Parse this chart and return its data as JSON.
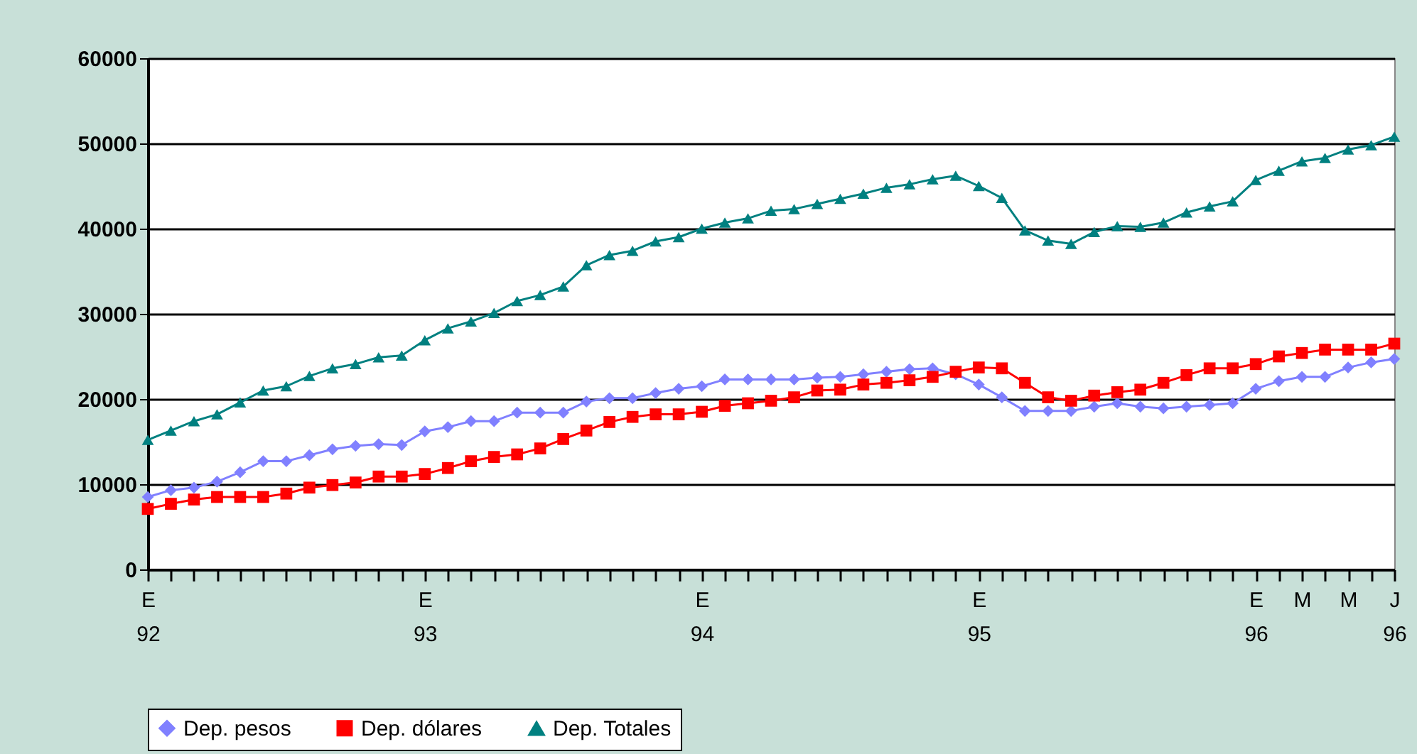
{
  "chart_data": {
    "type": "line",
    "categories": [
      "E\n92",
      null,
      null,
      null,
      null,
      null,
      null,
      null,
      null,
      null,
      null,
      null,
      "E\n93",
      null,
      null,
      null,
      null,
      null,
      null,
      null,
      null,
      null,
      null,
      null,
      "E\n94",
      null,
      null,
      null,
      null,
      null,
      null,
      null,
      null,
      null,
      null,
      null,
      "E\n95",
      null,
      null,
      null,
      null,
      null,
      null,
      null,
      null,
      null,
      null,
      null,
      "E\n96",
      null,
      "M",
      null,
      "M",
      null,
      "J\n96"
    ],
    "series": [
      {
        "name": "Dep. pesos",
        "color": "#8080ff",
        "marker": "diamond",
        "values": [
          8500,
          9300,
          9600,
          10300,
          11400,
          12700,
          12700,
          13400,
          14100,
          14500,
          14700,
          14600,
          16200,
          16700,
          17400,
          17400,
          18400,
          18400,
          18400,
          19700,
          20100,
          20100,
          20700,
          21200,
          21500,
          22300,
          22300,
          22300,
          22300,
          22500,
          22600,
          22900,
          23200,
          23500,
          23600,
          22900,
          21700,
          20200,
          18600,
          18600,
          18600,
          19100,
          19500,
          19100,
          18900,
          19100,
          19300,
          19500,
          21200,
          22100,
          22600,
          22600,
          23700,
          24300,
          24700
        ]
      },
      {
        "name": "Dep. dólares",
        "color": "#ff0000",
        "marker": "square",
        "values": [
          7100,
          7700,
          8200,
          8500,
          8500,
          8500,
          8900,
          9600,
          9900,
          10200,
          10900,
          10900,
          11200,
          11900,
          12700,
          13200,
          13500,
          14200,
          15300,
          16300,
          17300,
          17900,
          18200,
          18200,
          18500,
          19200,
          19500,
          19800,
          20200,
          21000,
          21100,
          21700,
          21900,
          22200,
          22600,
          23200,
          23700,
          23600,
          21900,
          20200,
          19800,
          20400,
          20800,
          21100,
          21900,
          22800,
          23600,
          23600,
          24100,
          25000,
          25400,
          25800,
          25800,
          25800,
          26500
        ]
      },
      {
        "name": "Dep. Totales",
        "color": "#008080",
        "marker": "triangle",
        "values": [
          15200,
          16300,
          17400,
          18200,
          19600,
          21000,
          21500,
          22700,
          23600,
          24100,
          24900,
          25100,
          26900,
          28300,
          29100,
          30100,
          31500,
          32200,
          33200,
          35700,
          36900,
          37400,
          38500,
          39000,
          40000,
          40700,
          41200,
          42100,
          42300,
          42900,
          43500,
          44100,
          44800,
          45200,
          45800,
          46200,
          45000,
          43600,
          39800,
          38600,
          38200,
          39600,
          40300,
          40200,
          40700,
          41900,
          42600,
          43200,
          45700,
          46800,
          47900,
          48300,
          49300,
          49800,
          50800
        ]
      }
    ],
    "ylim": [
      0,
      60000
    ],
    "yticks": [
      0,
      10000,
      20000,
      30000,
      40000,
      50000,
      60000
    ],
    "grid": "y",
    "legend": "bottom",
    "line_style": "solid"
  }
}
